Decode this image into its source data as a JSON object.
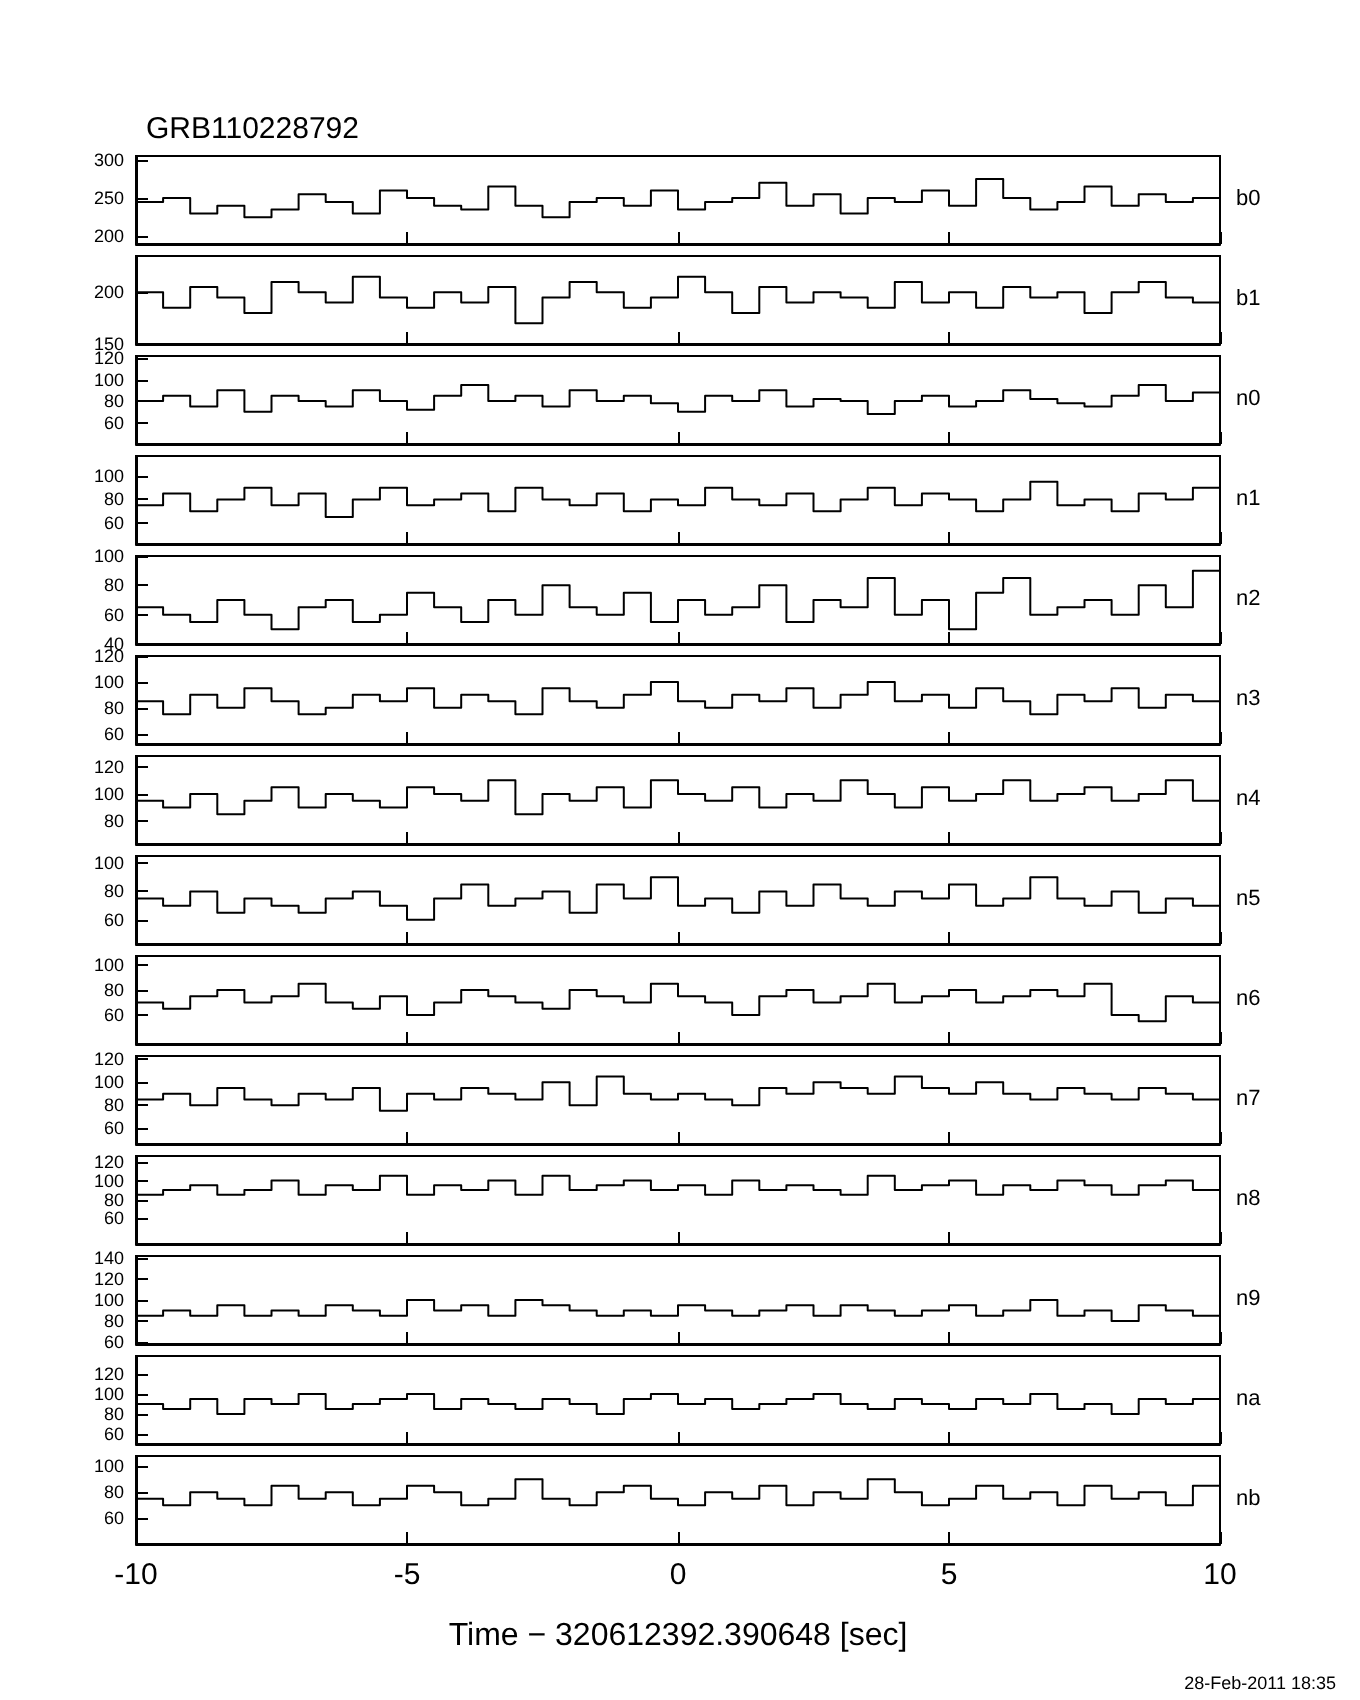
{
  "chart_data": [
    {
      "type": "step",
      "title": "GRB110228792",
      "tick_labels": "y",
      "xlim": [
        -10,
        10
      ],
      "xticks": [
        -10,
        -5,
        0,
        5,
        10
      ],
      "ylim": [
        190,
        305
      ],
      "yticks": [
        200,
        250,
        300
      ],
      "x": [
        -10,
        -9.5,
        -9,
        -8.5,
        -8,
        -7.5,
        -7,
        -6.5,
        -6,
        -5.5,
        -5,
        -4.5,
        -4,
        -3.5,
        -3,
        -2.5,
        -2,
        -1.5,
        -1,
        -0.5,
        0,
        0.5,
        1,
        1.5,
        2,
        2.5,
        3,
        3.5,
        4,
        4.5,
        5,
        5.5,
        6,
        6.5,
        7,
        7.5,
        8,
        8.5,
        9,
        9.5,
        10
      ],
      "series": [
        {
          "name": "b0",
          "color": "#000000",
          "values": [
            245,
            250,
            230,
            240,
            225,
            235,
            255,
            245,
            230,
            260,
            250,
            240,
            235,
            265,
            240,
            225,
            245,
            250,
            240,
            260,
            235,
            245,
            250,
            270,
            240,
            255,
            230,
            250,
            245,
            260,
            240,
            275,
            250,
            235,
            245,
            265,
            240,
            255,
            245,
            250,
            255
          ]
        }
      ]
    },
    {
      "type": "step",
      "tick_labels": "y",
      "xlim": [
        -10,
        10
      ],
      "xticks": [
        -10,
        -5,
        0,
        5,
        10
      ],
      "ylim": [
        150,
        235
      ],
      "yticks": [
        150,
        200
      ],
      "x": [
        -10,
        -9.5,
        -9,
        -8.5,
        -8,
        -7.5,
        -7,
        -6.5,
        -6,
        -5.5,
        -5,
        -4.5,
        -4,
        -3.5,
        -3,
        -2.5,
        -2,
        -1.5,
        -1,
        -0.5,
        0,
        0.5,
        1,
        1.5,
        2,
        2.5,
        3,
        3.5,
        4,
        4.5,
        5,
        5.5,
        6,
        6.5,
        7,
        7.5,
        8,
        8.5,
        9,
        9.5,
        10
      ],
      "series": [
        {
          "name": "b1",
          "color": "#000000",
          "values": [
            200,
            185,
            205,
            195,
            180,
            210,
            200,
            190,
            215,
            195,
            185,
            200,
            190,
            205,
            170,
            195,
            210,
            200,
            185,
            195,
            215,
            200,
            180,
            205,
            190,
            200,
            195,
            185,
            210,
            190,
            200,
            185,
            205,
            195,
            200,
            180,
            200,
            210,
            195,
            190,
            200
          ]
        }
      ]
    },
    {
      "type": "step",
      "tick_labels": "y",
      "xlim": [
        -10,
        10
      ],
      "xticks": [
        -10,
        -5,
        0,
        5,
        10
      ],
      "ylim": [
        40,
        122
      ],
      "yticks": [
        60,
        80,
        100,
        120
      ],
      "x": [
        -10,
        -9.5,
        -9,
        -8.5,
        -8,
        -7.5,
        -7,
        -6.5,
        -6,
        -5.5,
        -5,
        -4.5,
        -4,
        -3.5,
        -3,
        -2.5,
        -2,
        -1.5,
        -1,
        -0.5,
        0,
        0.5,
        1,
        1.5,
        2,
        2.5,
        3,
        3.5,
        4,
        4.5,
        5,
        5.5,
        6,
        6.5,
        7,
        7.5,
        8,
        8.5,
        9,
        9.5,
        10
      ],
      "series": [
        {
          "name": "n0",
          "color": "#000000",
          "values": [
            80,
            85,
            75,
            90,
            70,
            85,
            80,
            75,
            90,
            80,
            72,
            85,
            95,
            80,
            85,
            75,
            90,
            80,
            85,
            78,
            70,
            85,
            80,
            90,
            75,
            82,
            80,
            68,
            80,
            85,
            75,
            80,
            90,
            82,
            78,
            75,
            85,
            95,
            80,
            88,
            80
          ]
        }
      ]
    },
    {
      "type": "step",
      "tick_labels": "y",
      "xlim": [
        -10,
        10
      ],
      "xticks": [
        -10,
        -5,
        0,
        5,
        10
      ],
      "ylim": [
        42,
        117
      ],
      "yticks": [
        60,
        80,
        100
      ],
      "x": [
        -10,
        -9.5,
        -9,
        -8.5,
        -8,
        -7.5,
        -7,
        -6.5,
        -6,
        -5.5,
        -5,
        -4.5,
        -4,
        -3.5,
        -3,
        -2.5,
        -2,
        -1.5,
        -1,
        -0.5,
        0,
        0.5,
        1,
        1.5,
        2,
        2.5,
        3,
        3.5,
        4,
        4.5,
        5,
        5.5,
        6,
        6.5,
        7,
        7.5,
        8,
        8.5,
        9,
        9.5,
        10
      ],
      "series": [
        {
          "name": "n1",
          "color": "#000000",
          "values": [
            75,
            85,
            70,
            80,
            90,
            75,
            85,
            65,
            80,
            90,
            75,
            80,
            85,
            70,
            90,
            80,
            75,
            85,
            70,
            80,
            75,
            90,
            80,
            75,
            85,
            70,
            80,
            90,
            75,
            85,
            80,
            70,
            80,
            95,
            75,
            80,
            70,
            85,
            80,
            90,
            85
          ]
        }
      ]
    },
    {
      "type": "step",
      "tick_labels": "y",
      "xlim": [
        -10,
        10
      ],
      "xticks": [
        -10,
        -5,
        0,
        5,
        10
      ],
      "ylim": [
        40,
        100
      ],
      "yticks": [
        40,
        60,
        80,
        100
      ],
      "x": [
        -10,
        -9.5,
        -9,
        -8.5,
        -8,
        -7.5,
        -7,
        -6.5,
        -6,
        -5.5,
        -5,
        -4.5,
        -4,
        -3.5,
        -3,
        -2.5,
        -2,
        -1.5,
        -1,
        -0.5,
        0,
        0.5,
        1,
        1.5,
        2,
        2.5,
        3,
        3.5,
        4,
        4.5,
        5,
        5.5,
        6,
        6.5,
        7,
        7.5,
        8,
        8.5,
        9,
        9.5,
        10
      ],
      "series": [
        {
          "name": "n2",
          "color": "#000000",
          "values": [
            65,
            60,
            55,
            70,
            60,
            50,
            65,
            70,
            55,
            60,
            75,
            65,
            55,
            70,
            60,
            80,
            65,
            60,
            75,
            55,
            70,
            60,
            65,
            80,
            55,
            70,
            65,
            85,
            60,
            70,
            50,
            75,
            85,
            60,
            65,
            70,
            60,
            80,
            65,
            90,
            70
          ]
        }
      ]
    },
    {
      "type": "step",
      "tick_labels": "y",
      "xlim": [
        -10,
        10
      ],
      "xticks": [
        -10,
        -5,
        0,
        5,
        10
      ],
      "ylim": [
        52,
        120
      ],
      "yticks": [
        60,
        80,
        100,
        120
      ],
      "x": [
        -10,
        -9.5,
        -9,
        -8.5,
        -8,
        -7.5,
        -7,
        -6.5,
        -6,
        -5.5,
        -5,
        -4.5,
        -4,
        -3.5,
        -3,
        -2.5,
        -2,
        -1.5,
        -1,
        -0.5,
        0,
        0.5,
        1,
        1.5,
        2,
        2.5,
        3,
        3.5,
        4,
        4.5,
        5,
        5.5,
        6,
        6.5,
        7,
        7.5,
        8,
        8.5,
        9,
        9.5,
        10
      ],
      "series": [
        {
          "name": "n3",
          "color": "#000000",
          "values": [
            85,
            75,
            90,
            80,
            95,
            85,
            75,
            80,
            90,
            85,
            95,
            80,
            90,
            85,
            75,
            95,
            85,
            80,
            90,
            100,
            85,
            80,
            90,
            85,
            95,
            80,
            90,
            100,
            85,
            90,
            80,
            95,
            85,
            75,
            90,
            85,
            95,
            80,
            90,
            85,
            95
          ]
        }
      ]
    },
    {
      "type": "step",
      "tick_labels": "y",
      "xlim": [
        -10,
        10
      ],
      "xticks": [
        -10,
        -5,
        0,
        5,
        10
      ],
      "ylim": [
        63,
        128
      ],
      "yticks": [
        80,
        100,
        120
      ],
      "x": [
        -10,
        -9.5,
        -9,
        -8.5,
        -8,
        -7.5,
        -7,
        -6.5,
        -6,
        -5.5,
        -5,
        -4.5,
        -4,
        -3.5,
        -3,
        -2.5,
        -2,
        -1.5,
        -1,
        -0.5,
        0,
        0.5,
        1,
        1.5,
        2,
        2.5,
        3,
        3.5,
        4,
        4.5,
        5,
        5.5,
        6,
        6.5,
        7,
        7.5,
        8,
        8.5,
        9,
        9.5,
        10
      ],
      "series": [
        {
          "name": "n4",
          "color": "#000000",
          "values": [
            95,
            90,
            100,
            85,
            95,
            105,
            90,
            100,
            95,
            90,
            105,
            100,
            95,
            110,
            85,
            100,
            95,
            105,
            90,
            110,
            100,
            95,
            105,
            90,
            100,
            95,
            110,
            100,
            90,
            105,
            95,
            100,
            110,
            95,
            100,
            105,
            95,
            100,
            110,
            95,
            115
          ]
        }
      ]
    },
    {
      "type": "step",
      "tick_labels": "y",
      "xlim": [
        -10,
        10
      ],
      "xticks": [
        -10,
        -5,
        0,
        5,
        10
      ],
      "ylim": [
        43,
        105
      ],
      "yticks": [
        60,
        80,
        100
      ],
      "x": [
        -10,
        -9.5,
        -9,
        -8.5,
        -8,
        -7.5,
        -7,
        -6.5,
        -6,
        -5.5,
        -5,
        -4.5,
        -4,
        -3.5,
        -3,
        -2.5,
        -2,
        -1.5,
        -1,
        -0.5,
        0,
        0.5,
        1,
        1.5,
        2,
        2.5,
        3,
        3.5,
        4,
        4.5,
        5,
        5.5,
        6,
        6.5,
        7,
        7.5,
        8,
        8.5,
        9,
        9.5,
        10
      ],
      "series": [
        {
          "name": "n5",
          "color": "#000000",
          "values": [
            75,
            70,
            80,
            65,
            75,
            70,
            65,
            75,
            80,
            70,
            60,
            75,
            85,
            70,
            75,
            80,
            65,
            85,
            75,
            90,
            70,
            75,
            65,
            80,
            70,
            85,
            75,
            70,
            80,
            75,
            85,
            70,
            75,
            90,
            75,
            70,
            80,
            65,
            75,
            70,
            75
          ]
        }
      ]
    },
    {
      "type": "step",
      "tick_labels": "y",
      "xlim": [
        -10,
        10
      ],
      "xticks": [
        -10,
        -5,
        0,
        5,
        10
      ],
      "ylim": [
        37,
        107
      ],
      "yticks": [
        60,
        80,
        100
      ],
      "x": [
        -10,
        -9.5,
        -9,
        -8.5,
        -8,
        -7.5,
        -7,
        -6.5,
        -6,
        -5.5,
        -5,
        -4.5,
        -4,
        -3.5,
        -3,
        -2.5,
        -2,
        -1.5,
        -1,
        -0.5,
        0,
        0.5,
        1,
        1.5,
        2,
        2.5,
        3,
        3.5,
        4,
        4.5,
        5,
        5.5,
        6,
        6.5,
        7,
        7.5,
        8,
        8.5,
        9,
        9.5,
        10
      ],
      "series": [
        {
          "name": "n6",
          "color": "#000000",
          "values": [
            70,
            65,
            75,
            80,
            70,
            75,
            85,
            70,
            65,
            75,
            60,
            70,
            80,
            75,
            70,
            65,
            80,
            75,
            70,
            85,
            75,
            70,
            60,
            75,
            80,
            70,
            75,
            85,
            70,
            75,
            80,
            70,
            75,
            80,
            75,
            85,
            60,
            55,
            75,
            70,
            80
          ]
        }
      ]
    },
    {
      "type": "step",
      "tick_labels": "y",
      "xlim": [
        -10,
        10
      ],
      "xticks": [
        -10,
        -5,
        0,
        5,
        10
      ],
      "ylim": [
        46,
        123
      ],
      "yticks": [
        60,
        80,
        100,
        120
      ],
      "x": [
        -10,
        -9.5,
        -9,
        -8.5,
        -8,
        -7.5,
        -7,
        -6.5,
        -6,
        -5.5,
        -5,
        -4.5,
        -4,
        -3.5,
        -3,
        -2.5,
        -2,
        -1.5,
        -1,
        -0.5,
        0,
        0.5,
        1,
        1.5,
        2,
        2.5,
        3,
        3.5,
        4,
        4.5,
        5,
        5.5,
        6,
        6.5,
        7,
        7.5,
        8,
        8.5,
        9,
        9.5,
        10
      ],
      "series": [
        {
          "name": "n7",
          "color": "#000000",
          "values": [
            85,
            90,
            80,
            95,
            85,
            80,
            90,
            85,
            95,
            75,
            90,
            85,
            95,
            90,
            85,
            100,
            80,
            105,
            90,
            85,
            90,
            85,
            80,
            95,
            90,
            100,
            95,
            90,
            105,
            95,
            90,
            100,
            90,
            85,
            95,
            90,
            85,
            95,
            90,
            85,
            95
          ]
        }
      ]
    },
    {
      "type": "step",
      "tick_labels": "y",
      "xlim": [
        -10,
        10
      ],
      "xticks": [
        -10,
        -5,
        0,
        5,
        10
      ],
      "ylim": [
        33,
        126
      ],
      "yticks": [
        60,
        80,
        100,
        120
      ],
      "x": [
        -10,
        -9.5,
        -9,
        -8.5,
        -8,
        -7.5,
        -7,
        -6.5,
        -6,
        -5.5,
        -5,
        -4.5,
        -4,
        -3.5,
        -3,
        -2.5,
        -2,
        -1.5,
        -1,
        -0.5,
        0,
        0.5,
        1,
        1.5,
        2,
        2.5,
        3,
        3.5,
        4,
        4.5,
        5,
        5.5,
        6,
        6.5,
        7,
        7.5,
        8,
        8.5,
        9,
        9.5,
        10
      ],
      "series": [
        {
          "name": "n8",
          "color": "#000000",
          "values": [
            85,
            90,
            95,
            85,
            90,
            100,
            85,
            95,
            90,
            105,
            85,
            95,
            90,
            100,
            85,
            105,
            90,
            95,
            100,
            90,
            95,
            85,
            100,
            90,
            95,
            90,
            85,
            105,
            90,
            95,
            100,
            85,
            95,
            90,
            100,
            95,
            85,
            95,
            100,
            90,
            100
          ]
        }
      ]
    },
    {
      "type": "step",
      "tick_labels": "y",
      "xlim": [
        -10,
        10
      ],
      "xticks": [
        -10,
        -5,
        0,
        5,
        10
      ],
      "ylim": [
        58,
        142
      ],
      "yticks": [
        60,
        80,
        100,
        120,
        140
      ],
      "x": [
        -10,
        -9.5,
        -9,
        -8.5,
        -8,
        -7.5,
        -7,
        -6.5,
        -6,
        -5.5,
        -5,
        -4.5,
        -4,
        -3.5,
        -3,
        -2.5,
        -2,
        -1.5,
        -1,
        -0.5,
        0,
        0.5,
        1,
        1.5,
        2,
        2.5,
        3,
        3.5,
        4,
        4.5,
        5,
        5.5,
        6,
        6.5,
        7,
        7.5,
        8,
        8.5,
        9,
        9.5,
        10
      ],
      "series": [
        {
          "name": "n9",
          "color": "#000000",
          "values": [
            85,
            90,
            85,
            95,
            85,
            90,
            85,
            95,
            90,
            85,
            100,
            90,
            95,
            85,
            100,
            95,
            90,
            85,
            90,
            85,
            95,
            90,
            85,
            90,
            95,
            85,
            95,
            90,
            85,
            90,
            95,
            85,
            90,
            100,
            85,
            90,
            80,
            95,
            90,
            85,
            95
          ]
        }
      ]
    },
    {
      "type": "step",
      "tick_labels": "y",
      "xlim": [
        -10,
        10
      ],
      "xticks": [
        -10,
        -5,
        0,
        5,
        10
      ],
      "ylim": [
        50,
        138
      ],
      "yticks": [
        60,
        80,
        100,
        120
      ],
      "x": [
        -10,
        -9.5,
        -9,
        -8.5,
        -8,
        -7.5,
        -7,
        -6.5,
        -6,
        -5.5,
        -5,
        -4.5,
        -4,
        -3.5,
        -3,
        -2.5,
        -2,
        -1.5,
        -1,
        -0.5,
        0,
        0.5,
        1,
        1.5,
        2,
        2.5,
        3,
        3.5,
        4,
        4.5,
        5,
        5.5,
        6,
        6.5,
        7,
        7.5,
        8,
        8.5,
        9,
        9.5,
        10
      ],
      "series": [
        {
          "name": "na",
          "color": "#000000",
          "values": [
            90,
            85,
            95,
            80,
            95,
            90,
            100,
            85,
            90,
            95,
            100,
            85,
            95,
            90,
            85,
            95,
            90,
            80,
            95,
            100,
            90,
            95,
            85,
            90,
            95,
            100,
            90,
            85,
            95,
            90,
            85,
            95,
            90,
            100,
            85,
            90,
            80,
            95,
            90,
            95,
            90
          ]
        }
      ]
    },
    {
      "type": "step",
      "xlabel": "Time − 320612392.390648 [sec]",
      "annotations": [
        "28-Feb-2011 18:35"
      ],
      "xlim": [
        -10,
        10
      ],
      "xticks": [
        -10,
        -5,
        0,
        5,
        10
      ],
      "ylim": [
        40,
        108
      ],
      "yticks": [
        60,
        80,
        100
      ],
      "x": [
        -10,
        -9.5,
        -9,
        -8.5,
        -8,
        -7.5,
        -7,
        -6.5,
        -6,
        -5.5,
        -5,
        -4.5,
        -4,
        -3.5,
        -3,
        -2.5,
        -2,
        -1.5,
        -1,
        -0.5,
        0,
        0.5,
        1,
        1.5,
        2,
        2.5,
        3,
        3.5,
        4,
        4.5,
        5,
        5.5,
        6,
        6.5,
        7,
        7.5,
        8,
        8.5,
        9,
        9.5,
        10
      ],
      "series": [
        {
          "name": "nb",
          "color": "#000000",
          "values": [
            75,
            70,
            80,
            75,
            70,
            85,
            75,
            80,
            70,
            75,
            85,
            80,
            70,
            75,
            90,
            75,
            70,
            80,
            85,
            75,
            70,
            80,
            75,
            85,
            70,
            80,
            75,
            90,
            80,
            70,
            75,
            85,
            75,
            80,
            70,
            85,
            75,
            80,
            70,
            85,
            80
          ]
        }
      ]
    }
  ]
}
